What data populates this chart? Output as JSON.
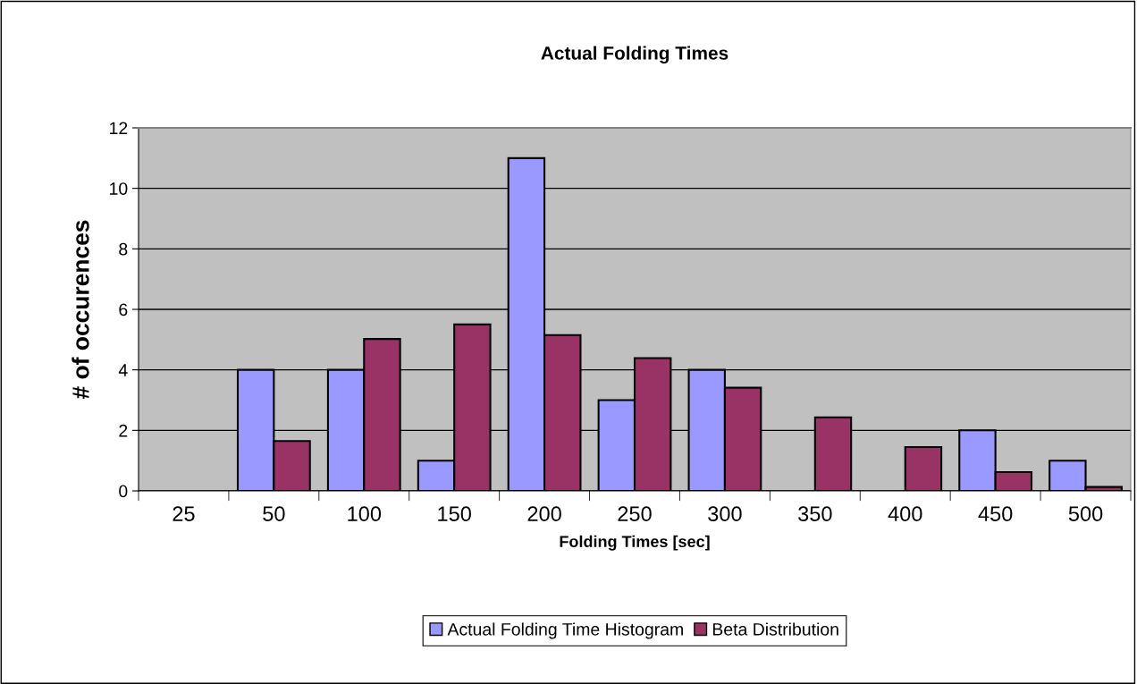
{
  "chart_data": {
    "type": "bar",
    "title": "Actual Folding Times",
    "xlabel": "Folding Times [sec]",
    "ylabel": "# of occurences",
    "categories": [
      "25",
      "50",
      "100",
      "150",
      "200",
      "250",
      "300",
      "350",
      "400",
      "450",
      "500"
    ],
    "series": [
      {
        "name": "Actual Folding Time Histogram",
        "color": "#9999ff",
        "values": [
          null,
          4,
          4,
          1,
          11,
          3,
          4,
          null,
          null,
          2,
          1
        ]
      },
      {
        "name": "Beta Distribution",
        "color": "#993366",
        "values": [
          null,
          1.65,
          5.02,
          5.5,
          5.15,
          4.39,
          3.41,
          2.43,
          1.45,
          0.62,
          0.13
        ]
      }
    ],
    "ylim": [
      0,
      12
    ],
    "yticks": [
      0,
      2,
      4,
      6,
      8,
      10,
      12
    ],
    "grid": "y",
    "legend": "bottom"
  }
}
